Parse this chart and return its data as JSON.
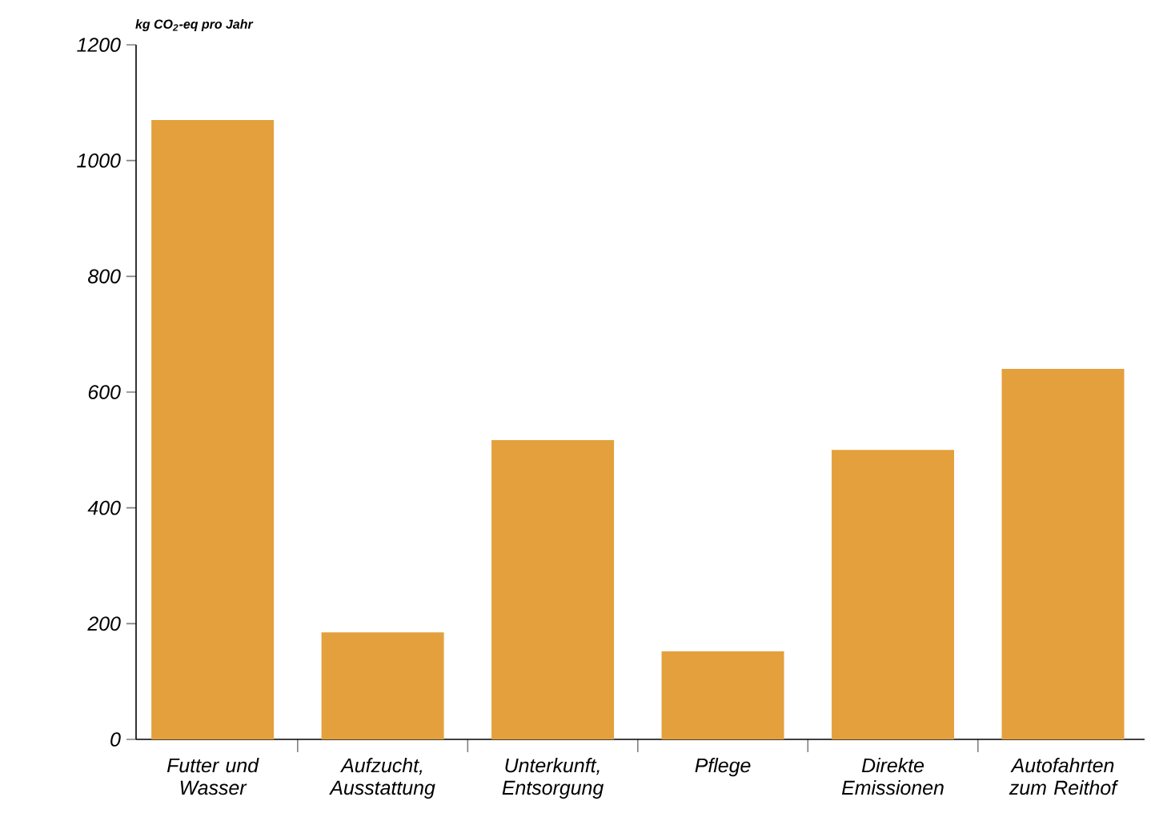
{
  "chart_data": {
    "type": "bar",
    "ylabel": "kg CO$_{2}$-eq pro Jahr",
    "categories": [
      "Futter und Wasser",
      "Aufzucht, Ausstattung",
      "Unterkunft, Entsorgung",
      "Pflege",
      "Direkte Emissionen",
      "Autofahrten zum Reithof"
    ],
    "values": [
      1070,
      185,
      517,
      152,
      500,
      640
    ],
    "color": "#e3a03c",
    "ylim": [
      0,
      1200
    ],
    "yticks": [
      0,
      200,
      400,
      600,
      800,
      1000,
      1200
    ],
    "grid": false
  }
}
